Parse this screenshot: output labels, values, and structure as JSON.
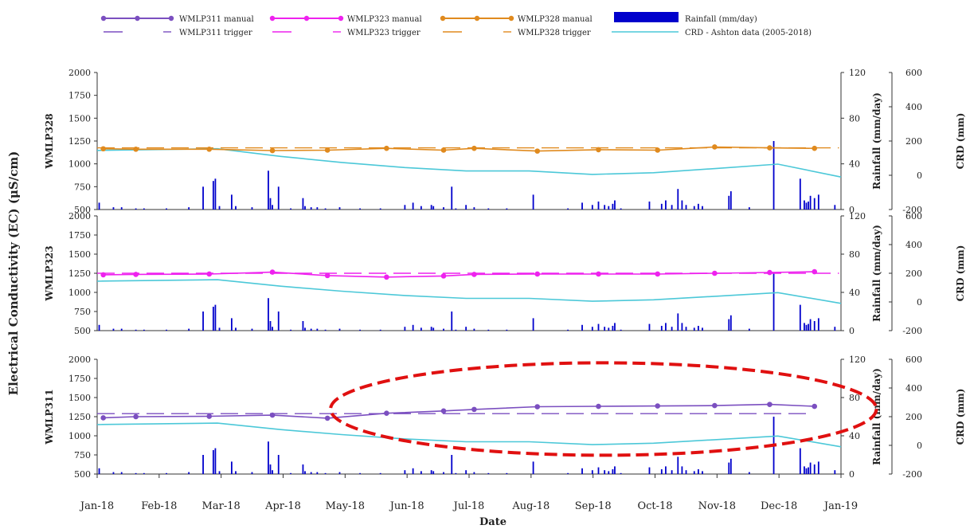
{
  "chart_data": {
    "type": "line",
    "legend": {
      "placement": "top",
      "entries": [
        {
          "key": "wmlp311_manual",
          "label": "WMLP311 manual",
          "color": "#7b4fc0"
        },
        {
          "key": "wmlp323_manual",
          "label": "WMLP323 manual",
          "color": "#ee22ee"
        },
        {
          "key": "wmlp328_manual",
          "label": "WMLP328 manual",
          "color": "#e08a1e"
        },
        {
          "key": "rainfall",
          "label": "Rainfall (mm/day)",
          "color": "#0000cc"
        },
        {
          "key": "wmlp311_trigger",
          "label": "WMLP311 trigger",
          "color": "#7b4fc0"
        },
        {
          "key": "wmlp323_trigger",
          "label": "WMLP323 trigger",
          "color": "#ee22ee"
        },
        {
          "key": "wmlp328_trigger",
          "label": "WMLP328 trigger",
          "color": "#e08a1e"
        },
        {
          "key": "crd",
          "label": "CRD - Ashton data (2005-2018)",
          "color": "#4cc8d8"
        }
      ]
    },
    "ylabel_main": "Electrical Conductivity (EC) (μS/cm)",
    "xlabel": "Date",
    "x_ticks": [
      "Jan-18",
      "Feb-18",
      "Mar-18",
      "Apr-18",
      "May-18",
      "Jun-18",
      "Jul-18",
      "Aug-18",
      "Sep-18",
      "Oct-18",
      "Nov-18",
      "Dec-18",
      "Jan-19"
    ],
    "ec_ylim": [
      500,
      2000
    ],
    "ec_ticks": [
      "2000",
      "1750",
      "1500",
      "1250",
      "1000",
      "750",
      "500"
    ],
    "rain_ylim": [
      0,
      120
    ],
    "rain_ticks": [
      "120",
      "80",
      "40",
      "0"
    ],
    "rain_label": "Rainfall (mm/day)",
    "crd_ylim": [
      -200,
      600
    ],
    "crd_ticks": [
      "600",
      "400",
      "200",
      "0",
      "-200"
    ],
    "crd_label": "CRD (mm)",
    "crd_series": [
      {
        "x": "2018-01-01",
        "y": 145
      },
      {
        "x": "2018-03-01",
        "y": 155
      },
      {
        "x": "2018-04-01",
        "y": 110
      },
      {
        "x": "2018-05-01",
        "y": 75
      },
      {
        "x": "2018-06-01",
        "y": 45
      },
      {
        "x": "2018-07-01",
        "y": 25
      },
      {
        "x": "2018-08-01",
        "y": 25
      },
      {
        "x": "2018-09-01",
        "y": 5
      },
      {
        "x": "2018-10-01",
        "y": 15
      },
      {
        "x": "2018-11-01",
        "y": 40
      },
      {
        "x": "2018-12-01",
        "y": 65
      },
      {
        "x": "2019-01-01",
        "y": -10
      }
    ],
    "rainfall": [
      {
        "x": "2018-01-02",
        "y": 6
      },
      {
        "x": "2018-01-09",
        "y": 2
      },
      {
        "x": "2018-01-13",
        "y": 2
      },
      {
        "x": "2018-01-20",
        "y": 1
      },
      {
        "x": "2018-01-24",
        "y": 1
      },
      {
        "x": "2018-02-04",
        "y": 1
      },
      {
        "x": "2018-02-15",
        "y": 2
      },
      {
        "x": "2018-02-22",
        "y": 20
      },
      {
        "x": "2018-02-27",
        "y": 25
      },
      {
        "x": "2018-02-28",
        "y": 27
      },
      {
        "x": "2018-03-02",
        "y": 3
      },
      {
        "x": "2018-03-08",
        "y": 13
      },
      {
        "x": "2018-03-10",
        "y": 3
      },
      {
        "x": "2018-03-18",
        "y": 2
      },
      {
        "x": "2018-03-26",
        "y": 34
      },
      {
        "x": "2018-03-27",
        "y": 10
      },
      {
        "x": "2018-03-28",
        "y": 4
      },
      {
        "x": "2018-03-31",
        "y": 20
      },
      {
        "x": "2018-04-06",
        "y": 1
      },
      {
        "x": "2018-04-12",
        "y": 10
      },
      {
        "x": "2018-04-13",
        "y": 3
      },
      {
        "x": "2018-04-16",
        "y": 2
      },
      {
        "x": "2018-04-19",
        "y": 2
      },
      {
        "x": "2018-04-23",
        "y": 1
      },
      {
        "x": "2018-04-30",
        "y": 2
      },
      {
        "x": "2018-05-10",
        "y": 1
      },
      {
        "x": "2018-05-20",
        "y": 1
      },
      {
        "x": "2018-06-01",
        "y": 4
      },
      {
        "x": "2018-06-05",
        "y": 6
      },
      {
        "x": "2018-06-09",
        "y": 3
      },
      {
        "x": "2018-06-14",
        "y": 4
      },
      {
        "x": "2018-06-15",
        "y": 3
      },
      {
        "x": "2018-06-20",
        "y": 2
      },
      {
        "x": "2018-06-24",
        "y": 20
      },
      {
        "x": "2018-06-26",
        "y": 1
      },
      {
        "x": "2018-07-01",
        "y": 4
      },
      {
        "x": "2018-07-05",
        "y": 2
      },
      {
        "x": "2018-07-12",
        "y": 1
      },
      {
        "x": "2018-07-21",
        "y": 1
      },
      {
        "x": "2018-08-03",
        "y": 13
      },
      {
        "x": "2018-08-20",
        "y": 1
      },
      {
        "x": "2018-08-27",
        "y": 6
      },
      {
        "x": "2018-09-01",
        "y": 4
      },
      {
        "x": "2018-09-04",
        "y": 7
      },
      {
        "x": "2018-09-07",
        "y": 4
      },
      {
        "x": "2018-09-09",
        "y": 3
      },
      {
        "x": "2018-09-11",
        "y": 5
      },
      {
        "x": "2018-09-12",
        "y": 8
      },
      {
        "x": "2018-09-15",
        "y": 1
      },
      {
        "x": "2018-09-29",
        "y": 7
      },
      {
        "x": "2018-10-05",
        "y": 5
      },
      {
        "x": "2018-10-07",
        "y": 8
      },
      {
        "x": "2018-10-10",
        "y": 4
      },
      {
        "x": "2018-10-13",
        "y": 18
      },
      {
        "x": "2018-10-15",
        "y": 8
      },
      {
        "x": "2018-10-17",
        "y": 4
      },
      {
        "x": "2018-10-21",
        "y": 3
      },
      {
        "x": "2018-10-23",
        "y": 5
      },
      {
        "x": "2018-10-25",
        "y": 3
      },
      {
        "x": "2018-11-07",
        "y": 12
      },
      {
        "x": "2018-11-08",
        "y": 16
      },
      {
        "x": "2018-11-17",
        "y": 2
      },
      {
        "x": "2018-11-29",
        "y": 60
      },
      {
        "x": "2018-12-12",
        "y": 27
      },
      {
        "x": "2018-12-14",
        "y": 8
      },
      {
        "x": "2018-12-15",
        "y": 6
      },
      {
        "x": "2018-12-16",
        "y": 7
      },
      {
        "x": "2018-12-17",
        "y": 12
      },
      {
        "x": "2018-12-19",
        "y": 10
      },
      {
        "x": "2018-12-21",
        "y": 13
      },
      {
        "x": "2018-12-29",
        "y": 4
      }
    ],
    "panels": [
      {
        "name": "WMLP328",
        "manual_key": "wmlp328_manual",
        "trigger": 1175,
        "trigger_end": "2018-12-31",
        "manual": [
          {
            "x": "2018-01-04",
            "y": 1165
          },
          {
            "x": "2018-01-20",
            "y": 1160
          },
          {
            "x": "2018-02-25",
            "y": 1160
          },
          {
            "x": "2018-03-28",
            "y": 1145
          },
          {
            "x": "2018-04-24",
            "y": 1150
          },
          {
            "x": "2018-05-23",
            "y": 1170
          },
          {
            "x": "2018-06-20",
            "y": 1150
          },
          {
            "x": "2018-07-05",
            "y": 1170
          },
          {
            "x": "2018-08-05",
            "y": 1140
          },
          {
            "x": "2018-09-04",
            "y": 1155
          },
          {
            "x": "2018-10-03",
            "y": 1150
          },
          {
            "x": "2018-10-31",
            "y": 1185
          },
          {
            "x": "2018-11-27",
            "y": 1175
          },
          {
            "x": "2018-12-19",
            "y": 1170
          }
        ]
      },
      {
        "name": "WMLP323",
        "manual_key": "wmlp323_manual",
        "trigger": 1250,
        "trigger_end": "2018-12-31",
        "manual": [
          {
            "x": "2018-01-04",
            "y": 1230
          },
          {
            "x": "2018-01-20",
            "y": 1235
          },
          {
            "x": "2018-02-25",
            "y": 1240
          },
          {
            "x": "2018-03-28",
            "y": 1265
          },
          {
            "x": "2018-04-24",
            "y": 1220
          },
          {
            "x": "2018-05-23",
            "y": 1200
          },
          {
            "x": "2018-06-20",
            "y": 1215
          },
          {
            "x": "2018-07-05",
            "y": 1235
          },
          {
            "x": "2018-08-05",
            "y": 1240
          },
          {
            "x": "2018-09-04",
            "y": 1240
          },
          {
            "x": "2018-10-03",
            "y": 1240
          },
          {
            "x": "2018-10-31",
            "y": 1250
          },
          {
            "x": "2018-11-27",
            "y": 1260
          },
          {
            "x": "2018-12-19",
            "y": 1270
          }
        ]
      },
      {
        "name": "WMLP311",
        "manual_key": "wmlp311_manual",
        "trigger": 1290,
        "trigger_end": "2018-12-15",
        "manual": [
          {
            "x": "2018-01-04",
            "y": 1235
          },
          {
            "x": "2018-01-20",
            "y": 1250
          },
          {
            "x": "2018-02-25",
            "y": 1255
          },
          {
            "x": "2018-03-28",
            "y": 1270
          },
          {
            "x": "2018-04-24",
            "y": 1230
          },
          {
            "x": "2018-05-23",
            "y": 1295
          },
          {
            "x": "2018-06-20",
            "y": 1325
          },
          {
            "x": "2018-07-05",
            "y": 1345
          },
          {
            "x": "2018-08-05",
            "y": 1380
          },
          {
            "x": "2018-09-04",
            "y": 1385
          },
          {
            "x": "2018-10-03",
            "y": 1390
          },
          {
            "x": "2018-10-31",
            "y": 1395
          },
          {
            "x": "2018-11-27",
            "y": 1410
          },
          {
            "x": "2018-12-19",
            "y": 1385
          }
        ]
      }
    ],
    "highlight": {
      "panel": "WMLP311",
      "shape": "ellipse",
      "color": "#e01010",
      "x_from": "2018-05-10",
      "x_to": "2018-12-31"
    }
  }
}
